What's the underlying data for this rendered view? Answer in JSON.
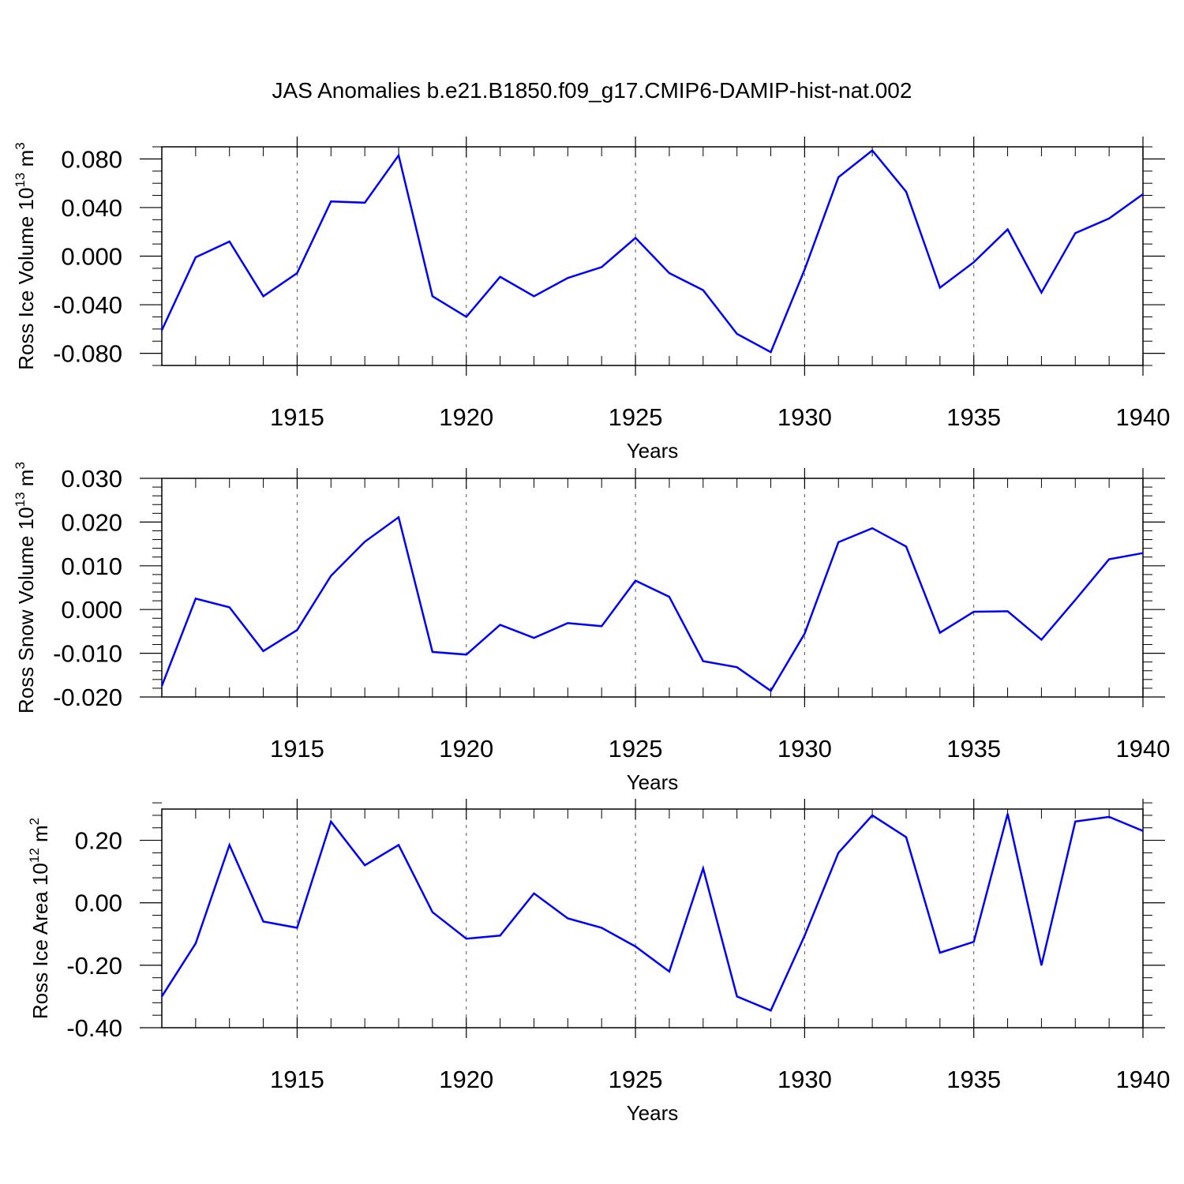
{
  "title": "JAS Anomalies b.e21.B1850.f09_g17.CMIP6-DAMIP-hist-nat.002",
  "chart_data": [
    {
      "type": "line",
      "name": "ross-ice-volume",
      "ylabel": {
        "prefix": "Ross Ice Volume 10",
        "exp": "13",
        "unit": " m",
        "unit_exp": "3"
      },
      "xlabel": "Years",
      "xlim": [
        1911,
        1940
      ],
      "ylim": [
        -0.09,
        0.09
      ],
      "yticks": [
        -0.08,
        -0.04,
        0.0,
        0.04,
        0.08
      ],
      "ytick_labels": [
        "-0.080",
        "-0.040",
        "0.000",
        "0.040",
        "0.080"
      ],
      "yminor_step": 0.01,
      "xticks": [
        1915,
        1920,
        1925,
        1930,
        1935,
        1940
      ],
      "xtick_labels": [
        "1915",
        "1920",
        "1925",
        "1930",
        "1935",
        "1940"
      ],
      "x": [
        1911,
        1912,
        1913,
        1914,
        1915,
        1916,
        1917,
        1918,
        1919,
        1920,
        1921,
        1922,
        1923,
        1924,
        1925,
        1926,
        1927,
        1928,
        1929,
        1930,
        1931,
        1932,
        1933,
        1934,
        1935,
        1936,
        1937,
        1938,
        1939,
        1940
      ],
      "series": [
        {
          "name": "Ross Ice Volume",
          "color": "#0000ff",
          "values": [
            -0.061,
            -0.001,
            0.012,
            -0.033,
            -0.014,
            0.045,
            0.044,
            0.083,
            -0.033,
            -0.05,
            -0.017,
            -0.033,
            -0.018,
            -0.009,
            0.015,
            -0.014,
            -0.028,
            -0.064,
            -0.079,
            -0.011,
            0.065,
            0.087,
            0.053,
            -0.026,
            -0.005,
            0.022,
            -0.03,
            0.019,
            0.031,
            0.051
          ]
        }
      ]
    },
    {
      "type": "line",
      "name": "ross-snow-volume",
      "ylabel": {
        "prefix": "Ross Snow Volume 10",
        "exp": "13",
        "unit": " m",
        "unit_exp": "3"
      },
      "xlabel": "Years",
      "xlim": [
        1911,
        1940
      ],
      "ylim": [
        -0.02,
        0.03
      ],
      "yticks": [
        -0.02,
        -0.01,
        0.0,
        0.01,
        0.02,
        0.03
      ],
      "ytick_labels": [
        "-0.020",
        "-0.010",
        "0.000",
        "0.010",
        "0.020",
        "0.030"
      ],
      "yminor_step": 0.002,
      "xticks": [
        1915,
        1920,
        1925,
        1930,
        1935,
        1940
      ],
      "xtick_labels": [
        "1915",
        "1920",
        "1925",
        "1930",
        "1935",
        "1940"
      ],
      "x": [
        1911,
        1912,
        1913,
        1914,
        1915,
        1916,
        1917,
        1918,
        1919,
        1920,
        1921,
        1922,
        1923,
        1924,
        1925,
        1926,
        1927,
        1928,
        1929,
        1930,
        1931,
        1932,
        1933,
        1934,
        1935,
        1936,
        1937,
        1938,
        1939,
        1940
      ],
      "series": [
        {
          "name": "Ross Snow Volume",
          "color": "#0000ff",
          "values": [
            -0.0175,
            0.0025,
            0.0005,
            -0.0095,
            -0.0047,
            0.0077,
            0.0155,
            0.0211,
            -0.0097,
            -0.0103,
            -0.0035,
            -0.0065,
            -0.0031,
            -0.0038,
            0.0066,
            0.0029,
            -0.0118,
            -0.0132,
            -0.0186,
            -0.0055,
            0.0154,
            0.0186,
            0.0144,
            -0.0053,
            -0.0005,
            -0.0004,
            -0.0069,
            0.0022,
            0.0115,
            0.0129
          ]
        }
      ]
    },
    {
      "type": "line",
      "name": "ross-ice-area",
      "ylabel": {
        "prefix": "Ross Ice Area 10",
        "exp": "12",
        "unit": " m",
        "unit_exp": "2"
      },
      "xlabel": "Years",
      "xlim": [
        1911,
        1940
      ],
      "ylim": [
        -0.4,
        0.3
      ],
      "yticks": [
        -0.4,
        -0.2,
        0.0,
        0.2
      ],
      "ytick_labels": [
        "-0.40",
        "-0.20",
        "0.00",
        "0.20"
      ],
      "yminor_step": 0.04,
      "xticks": [
        1915,
        1920,
        1925,
        1930,
        1935,
        1940
      ],
      "xtick_labels": [
        "1915",
        "1920",
        "1925",
        "1930",
        "1935",
        "1940"
      ],
      "x": [
        1911,
        1912,
        1913,
        1914,
        1915,
        1916,
        1917,
        1918,
        1919,
        1920,
        1921,
        1922,
        1923,
        1924,
        1925,
        1926,
        1927,
        1928,
        1929,
        1930,
        1931,
        1932,
        1933,
        1934,
        1935,
        1936,
        1937,
        1938,
        1939,
        1940
      ],
      "series": [
        {
          "name": "Ross Ice Area",
          "color": "#0000ff",
          "values": [
            -0.3,
            -0.13,
            0.185,
            -0.06,
            -0.08,
            0.26,
            0.12,
            0.185,
            -0.03,
            -0.115,
            -0.105,
            0.03,
            -0.05,
            -0.08,
            -0.14,
            -0.22,
            0.11,
            -0.3,
            -0.345,
            -0.105,
            0.16,
            0.28,
            0.21,
            -0.16,
            -0.125,
            0.285,
            -0.2,
            0.26,
            0.275,
            0.23
          ]
        }
      ]
    }
  ]
}
